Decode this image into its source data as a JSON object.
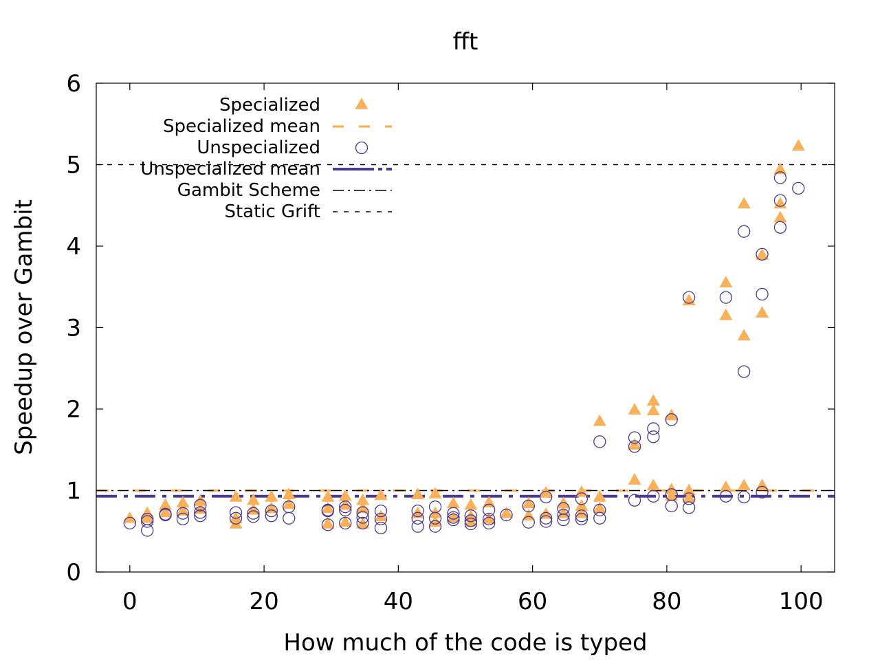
{
  "chart_data": {
    "type": "scatter",
    "title": "fft",
    "xlabel": "How much of the code is typed",
    "ylabel": "Speedup over Gambit",
    "xlim": [
      -5,
      105
    ],
    "ylim": [
      0,
      6
    ],
    "xticks": [
      0,
      20,
      40,
      60,
      80,
      100
    ],
    "yticks": [
      0,
      1,
      2,
      3,
      4,
      5,
      6
    ],
    "grid": false,
    "legend_position": "top-left",
    "colors": {
      "specialized": "#f8b05a",
      "unspecialized": "#4b3a8f",
      "gambit": "#000000",
      "static": "#000000"
    },
    "series": [
      {
        "name": "Specialized",
        "marker": "triangle",
        "points": [
          [
            0,
            0.66
          ],
          [
            2.6,
            0.72
          ],
          [
            2.6,
            0.66
          ],
          [
            5.3,
            0.82
          ],
          [
            5.3,
            0.73
          ],
          [
            7.9,
            0.85
          ],
          [
            7.9,
            0.75
          ],
          [
            10.5,
            0.87
          ],
          [
            10.5,
            0.77
          ],
          [
            15.8,
            0.92
          ],
          [
            15.8,
            0.66
          ],
          [
            15.8,
            0.59
          ],
          [
            18.4,
            0.88
          ],
          [
            18.4,
            0.76
          ],
          [
            21.1,
            0.92
          ],
          [
            21.1,
            0.78
          ],
          [
            23.7,
            0.95
          ],
          [
            23.7,
            0.83
          ],
          [
            29.5,
            0.92
          ],
          [
            29.5,
            0.78
          ],
          [
            29.5,
            0.59
          ],
          [
            32.1,
            0.93
          ],
          [
            32.1,
            0.82
          ],
          [
            32.1,
            0.61
          ],
          [
            34.7,
            0.88
          ],
          [
            34.7,
            0.78
          ],
          [
            34.7,
            0.59
          ],
          [
            37.4,
            0.94
          ],
          [
            37.4,
            0.68
          ],
          [
            42.9,
            0.95
          ],
          [
            42.9,
            0.72
          ],
          [
            45.5,
            0.96
          ],
          [
            45.5,
            0.72
          ],
          [
            45.5,
            0.61
          ],
          [
            48.2,
            0.84
          ],
          [
            48.2,
            0.67
          ],
          [
            50.8,
            0.82
          ],
          [
            50.8,
            0.68
          ],
          [
            50.8,
            0.61
          ],
          [
            53.5,
            0.85
          ],
          [
            53.5,
            0.65
          ],
          [
            56.1,
            0.72
          ],
          [
            59.4,
            0.84
          ],
          [
            59.4,
            0.69
          ],
          [
            62,
            0.97
          ],
          [
            62,
            0.71
          ],
          [
            64.6,
            0.84
          ],
          [
            64.6,
            0.72
          ],
          [
            67.3,
            0.98
          ],
          [
            67.3,
            0.81
          ],
          [
            67.3,
            0.72
          ],
          [
            70,
            1.85
          ],
          [
            70,
            0.92
          ],
          [
            70,
            0.78
          ],
          [
            75.2,
            1.99
          ],
          [
            75.2,
            1.13
          ],
          [
            75.2,
            1.56
          ],
          [
            78,
            2.1
          ],
          [
            78,
            1.98
          ],
          [
            78,
            1.06
          ],
          [
            80.7,
            1.92
          ],
          [
            80.7,
            1.01
          ],
          [
            80.7,
            0.93
          ],
          [
            83.3,
            3.33
          ],
          [
            83.3,
            1.0
          ],
          [
            83.3,
            0.91
          ],
          [
            88.8,
            3.55
          ],
          [
            88.8,
            3.15
          ],
          [
            88.8,
            1.04
          ],
          [
            91.5,
            4.52
          ],
          [
            91.5,
            2.9
          ],
          [
            91.5,
            1.06
          ],
          [
            94.2,
            3.89
          ],
          [
            94.2,
            3.18
          ],
          [
            94.2,
            1.06
          ],
          [
            96.9,
            4.94
          ],
          [
            96.9,
            4.52
          ],
          [
            96.9,
            4.35
          ],
          [
            99.6,
            5.23
          ]
        ]
      },
      {
        "name": "Unspecialized",
        "marker": "circle",
        "points": [
          [
            0,
            0.6
          ],
          [
            2.6,
            0.51
          ],
          [
            2.6,
            0.62
          ],
          [
            2.6,
            0.65
          ],
          [
            5.3,
            0.7
          ],
          [
            5.3,
            0.71
          ],
          [
            7.9,
            0.65
          ],
          [
            7.9,
            0.72
          ],
          [
            10.5,
            0.69
          ],
          [
            10.5,
            0.73
          ],
          [
            10.5,
            0.82
          ],
          [
            15.8,
            0.73
          ],
          [
            15.8,
            0.66
          ],
          [
            18.4,
            0.68
          ],
          [
            18.4,
            0.72
          ],
          [
            21.1,
            0.69
          ],
          [
            21.1,
            0.75
          ],
          [
            23.7,
            0.66
          ],
          [
            23.7,
            0.8
          ],
          [
            29.5,
            0.58
          ],
          [
            29.5,
            0.75
          ],
          [
            29.5,
            0.76
          ],
          [
            32.1,
            0.6
          ],
          [
            32.1,
            0.76
          ],
          [
            32.1,
            0.8
          ],
          [
            34.7,
            0.6
          ],
          [
            34.7,
            0.67
          ],
          [
            34.7,
            0.73
          ],
          [
            37.4,
            0.54
          ],
          [
            37.4,
            0.65
          ],
          [
            37.4,
            0.75
          ],
          [
            42.9,
            0.56
          ],
          [
            42.9,
            0.66
          ],
          [
            42.9,
            0.75
          ],
          [
            45.5,
            0.56
          ],
          [
            45.5,
            0.66
          ],
          [
            45.5,
            0.8
          ],
          [
            48.2,
            0.64
          ],
          [
            48.2,
            0.67
          ],
          [
            48.2,
            0.72
          ],
          [
            50.8,
            0.59
          ],
          [
            50.8,
            0.63
          ],
          [
            50.8,
            0.69
          ],
          [
            53.5,
            0.6
          ],
          [
            53.5,
            0.65
          ],
          [
            53.5,
            0.76
          ],
          [
            56.1,
            0.7
          ],
          [
            59.4,
            0.61
          ],
          [
            59.4,
            0.81
          ],
          [
            62,
            0.62
          ],
          [
            62,
            0.66
          ],
          [
            62,
            0.92
          ],
          [
            64.6,
            0.64
          ],
          [
            64.6,
            0.7
          ],
          [
            64.6,
            0.78
          ],
          [
            67.3,
            0.65
          ],
          [
            67.3,
            0.69
          ],
          [
            67.3,
            0.9
          ],
          [
            70,
            0.66
          ],
          [
            70,
            0.76
          ],
          [
            70,
            1.6
          ],
          [
            75.2,
            0.88
          ],
          [
            75.2,
            1.54
          ],
          [
            75.2,
            1.65
          ],
          [
            78,
            0.93
          ],
          [
            78,
            1.66
          ],
          [
            78,
            1.76
          ],
          [
            80.7,
            0.81
          ],
          [
            80.7,
            0.95
          ],
          [
            80.7,
            1.87
          ],
          [
            83.3,
            0.79
          ],
          [
            83.3,
            0.9
          ],
          [
            83.3,
            3.37
          ],
          [
            88.8,
            0.93
          ],
          [
            88.8,
            3.37
          ],
          [
            91.5,
            0.92
          ],
          [
            91.5,
            2.46
          ],
          [
            91.5,
            4.18
          ],
          [
            94.2,
            0.98
          ],
          [
            94.2,
            3.41
          ],
          [
            94.2,
            3.9
          ],
          [
            96.9,
            4.23
          ],
          [
            96.9,
            4.56
          ],
          [
            96.9,
            4.84
          ],
          [
            99.6,
            4.71
          ]
        ]
      }
    ],
    "reference_lines": [
      {
        "name": "Specialized mean",
        "y": 1.0,
        "style": "long-dash",
        "color": "#f8b05a"
      },
      {
        "name": "Unspecialized mean",
        "y": 0.93,
        "style": "dash-dot-thick",
        "color": "#4b3a8f"
      },
      {
        "name": "Gambit Scheme",
        "y": 1.0,
        "style": "dash-dot",
        "color": "#000000"
      },
      {
        "name": "Static Grift",
        "y": 5.0,
        "style": "short-dash",
        "color": "#000000"
      }
    ],
    "legend": [
      {
        "label": "Specialized",
        "kind": "triangle"
      },
      {
        "label": "Specialized mean",
        "kind": "spec-mean"
      },
      {
        "label": "Unspecialized",
        "kind": "circle"
      },
      {
        "label": "Unspecialized mean",
        "kind": "unspec-mean"
      },
      {
        "label": "Gambit Scheme",
        "kind": "gambit"
      },
      {
        "label": "Static Grift",
        "kind": "static"
      }
    ]
  }
}
